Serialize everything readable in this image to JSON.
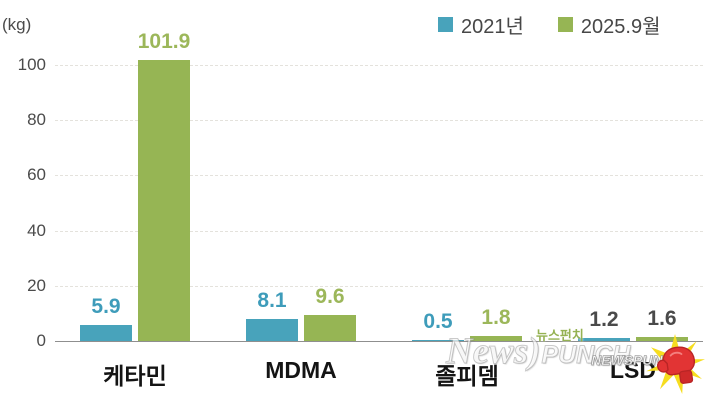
{
  "unit_label": "(kg)",
  "legend": {
    "items": [
      {
        "label": "2021년",
        "color": "#48a3bb"
      },
      {
        "label": "2025.9월",
        "color": "#96b554"
      }
    ]
  },
  "chart_data": {
    "type": "bar",
    "title": "",
    "ylabel": "(kg)",
    "categories": [
      "케타민",
      "MDMA",
      "졸피뎀",
      "LSD"
    ],
    "series": [
      {
        "name": "2021년",
        "color": "#48a3bb",
        "values": [
          5.9,
          8.1,
          0.5,
          1.2
        ],
        "value_label_colors": [
          "#3e9cba",
          "#3e9cba",
          "#3e9cba",
          "#4a4a4a"
        ]
      },
      {
        "name": "2025.9월",
        "color": "#96b554",
        "values": [
          101.9,
          9.6,
          1.8,
          1.6
        ],
        "value_label_colors": [
          "#9cb75a",
          "#9cb75a",
          "#9cb75a",
          "#4a4a4a"
        ]
      }
    ],
    "ylim": [
      0,
      100
    ],
    "yticks": [
      0,
      20,
      40,
      60,
      80,
      100
    ],
    "grid": true,
    "legend_position": "top-right",
    "value_labels_shown": true
  },
  "watermark": {
    "korean_text": "뉴스펀치",
    "logo_news": "News)",
    "logo_punch": "PUNCH",
    "logo_small": "NEWSPUNCH",
    "glove_icon_color": "#e23434",
    "starburst_color": "#f6dd1f"
  }
}
